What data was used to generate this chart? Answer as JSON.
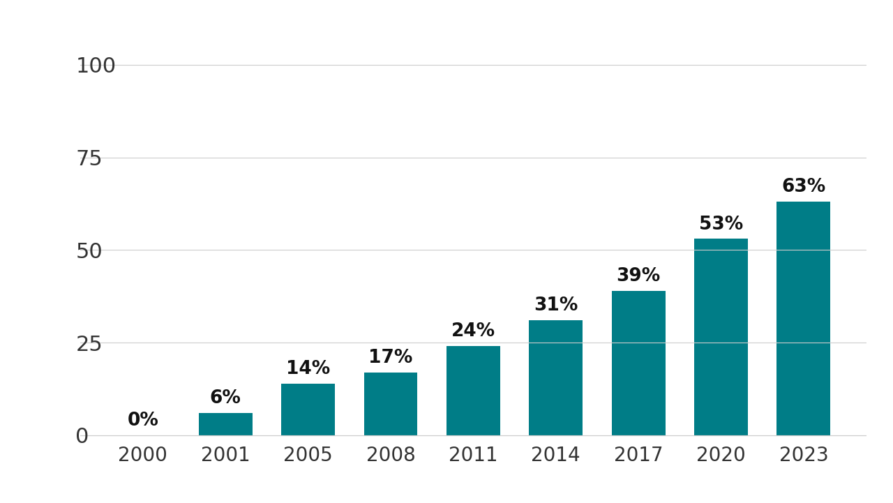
{
  "categories": [
    "2000",
    "2001",
    "2005",
    "2008",
    "2011",
    "2014",
    "2017",
    "2020",
    "2023"
  ],
  "values": [
    0,
    6,
    14,
    17,
    24,
    31,
    39,
    53,
    63
  ],
  "labels": [
    "0%",
    "6%",
    "14%",
    "17%",
    "24%",
    "31%",
    "39%",
    "53%",
    "63%"
  ],
  "bar_color": "#007d87",
  "background_color": "#ffffff",
  "yticks": [
    0,
    25,
    50,
    75,
    100
  ],
  "ylim": [
    -2,
    108
  ],
  "grid_color": "#cccccc",
  "tick_color": "#333333",
  "ytick_fontsize": 22,
  "xtick_fontsize": 20,
  "annotation_fontsize": 19,
  "bar_width": 0.65
}
